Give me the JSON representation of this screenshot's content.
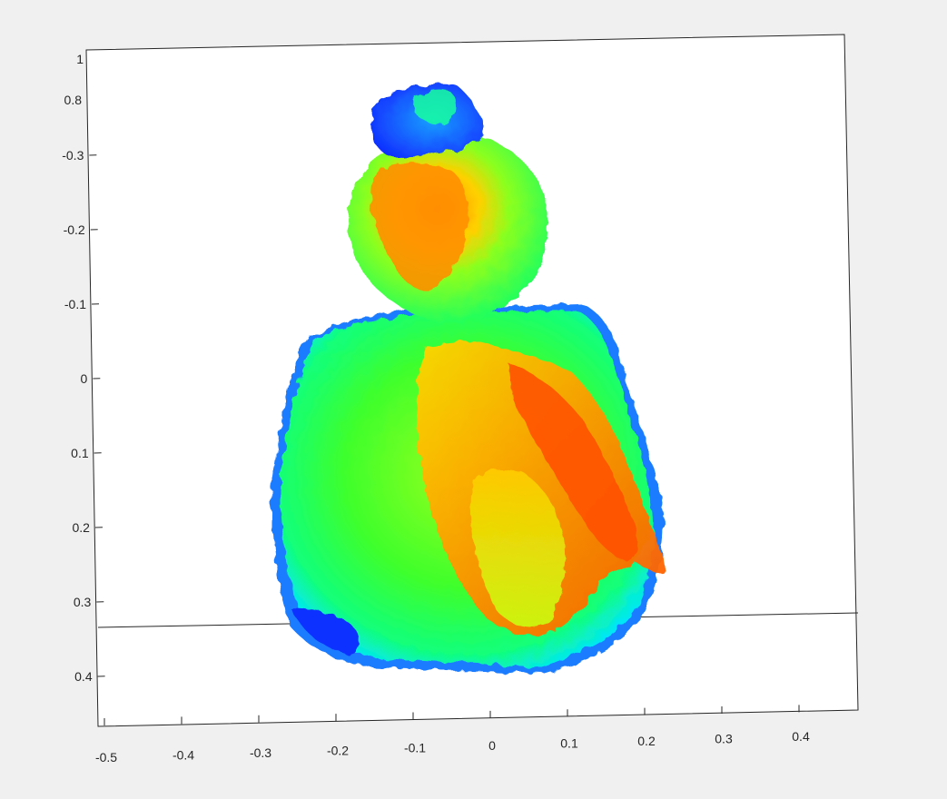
{
  "chart_data": {
    "type": "scatter",
    "title": "",
    "xlabel": "",
    "ylabel": "",
    "zlabel": "",
    "colormap": "jet",
    "background": "#f0f0f0",
    "axes_background": "#ffffff",
    "xlim": [
      -0.5,
      0.45
    ],
    "ylim": [
      -0.35,
      0.45
    ],
    "x_ticks": [
      {
        "value": -0.5,
        "label": "-0.5"
      },
      {
        "value": -0.4,
        "label": "-0.4"
      },
      {
        "value": -0.3,
        "label": "-0.3"
      },
      {
        "value": -0.2,
        "label": "-0.2"
      },
      {
        "value": -0.1,
        "label": "-0.1"
      },
      {
        "value": 0,
        "label": "0"
      },
      {
        "value": 0.1,
        "label": "0.1"
      },
      {
        "value": 0.2,
        "label": "0.2"
      },
      {
        "value": 0.3,
        "label": "0.3"
      },
      {
        "value": 0.4,
        "label": "0.4"
      }
    ],
    "y_ticks": [
      {
        "value": -0.3,
        "label": "-0.3"
      },
      {
        "value": -0.2,
        "label": "-0.2"
      },
      {
        "value": -0.1,
        "label": "-0.1"
      },
      {
        "value": 0,
        "label": "0"
      },
      {
        "value": 0.1,
        "label": "0.1"
      },
      {
        "value": 0.2,
        "label": "0.2"
      },
      {
        "value": 0.3,
        "label": "0.3"
      },
      {
        "value": 0.4,
        "label": "0.4"
      }
    ],
    "z_ticks": [
      {
        "value": 1,
        "label": "1"
      },
      {
        "value": 0.8,
        "label": "0.8"
      }
    ],
    "point_cloud": {
      "description_kind": "depth-colored point cloud of a seated person",
      "regions": [
        {
          "part": "head-bun",
          "cx": -0.1,
          "cy": -0.36,
          "rx": 0.05,
          "ry": 0.04,
          "color": "#1d4fff"
        },
        {
          "part": "head",
          "cx": -0.05,
          "cy": -0.2,
          "rx": 0.12,
          "ry": 0.15,
          "color": "#35ff30"
        },
        {
          "part": "face",
          "cx": -0.1,
          "cy": -0.2,
          "rx": 0.06,
          "ry": 0.1,
          "color": "#ff8a00"
        },
        {
          "part": "torso",
          "cx": 0.03,
          "cy": 0.15,
          "rx": 0.27,
          "ry": 0.25,
          "color": "#40ff2a"
        },
        {
          "part": "arm",
          "cx": 0.08,
          "cy": 0.1,
          "rx": 0.1,
          "ry": 0.2,
          "color": "#ffb000"
        },
        {
          "part": "forearm",
          "cx": 0.12,
          "cy": 0.1,
          "rx": 0.07,
          "ry": 0.18,
          "color": "#ff5a00"
        }
      ]
    }
  }
}
